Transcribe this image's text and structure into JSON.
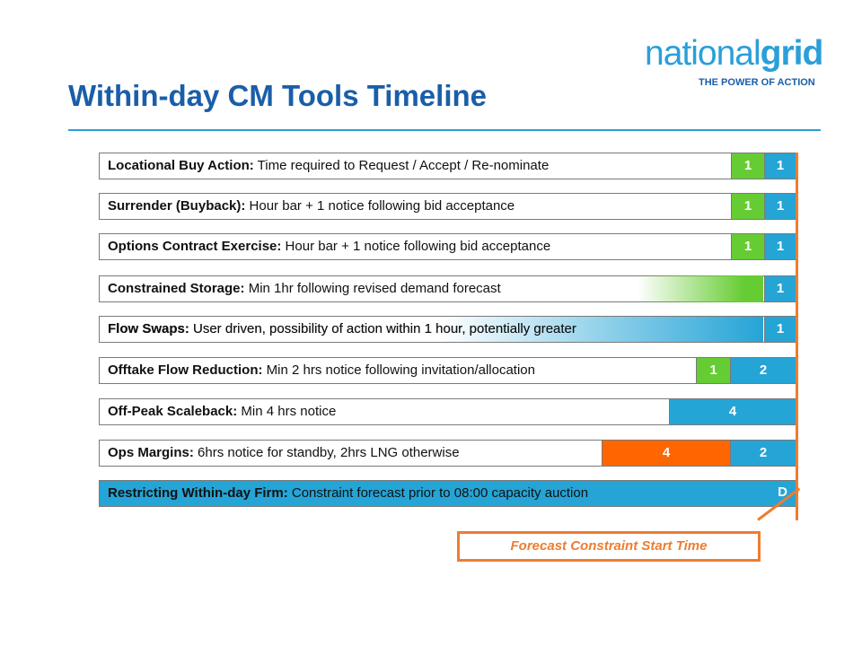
{
  "logo": {
    "word_light": "national",
    "word_bold": "grid",
    "tagline": "THE POWER OF ACTION"
  },
  "title": "Within-day CM Tools Timeline",
  "rows": [
    {
      "name": "Locational Buy Action:",
      "desc": " Time required to Request / Accept / Re-nominate",
      "segments": [
        "1",
        "1"
      ]
    },
    {
      "name": "Surrender (Buyback):",
      "desc": " Hour bar + 1 notice following bid acceptance",
      "segments": [
        "1",
        "1"
      ]
    },
    {
      "name": "Options Contract Exercise:",
      "desc": " Hour bar + 1 notice following bid acceptance",
      "segments": [
        "1",
        "1"
      ]
    },
    {
      "name": "Constrained Storage:",
      "desc": " Min 1hr following revised demand forecast",
      "segments": [
        "1"
      ]
    },
    {
      "name": "Flow Swaps:",
      "desc": " User driven, possibility of action within 1 hour, potentially greater",
      "segments": [
        "1"
      ]
    },
    {
      "name": "Offtake Flow Reduction:",
      "desc": " Min 2 hrs notice following invitation/allocation",
      "segments": [
        "1",
        "2"
      ]
    },
    {
      "name": "Off-Peak Scaleback:",
      "desc": " Min 4 hrs notice",
      "segments": [
        "4"
      ]
    },
    {
      "name": "Ops Margins:",
      "desc": " 6hrs notice for standby, 2hrs  LNG otherwise",
      "segments": [
        "4",
        "2"
      ]
    },
    {
      "name": "Restricting Within-day Firm:",
      "desc": " Constraint forecast prior to 08:00 capacity auction",
      "segments": [
        "D"
      ]
    }
  ],
  "callout": "Forecast Constraint Start Time",
  "colors": {
    "green": "#66cc33",
    "blue": "#25a4d6",
    "orange": "#ff6600",
    "accent": "#ed7d31",
    "title": "#1a5ea8"
  }
}
